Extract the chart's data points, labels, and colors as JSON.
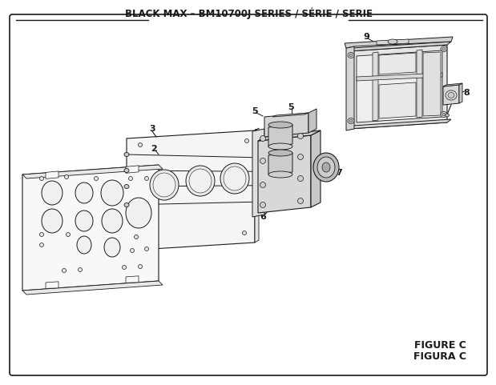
{
  "title": "BLACK MAX – BM10700J SERIES / SÉRIE / SERIE",
  "title_fontsize": 8.5,
  "title_fontweight": "bold",
  "bg_color": "#ffffff",
  "border_color": "#1a1a1a",
  "figure_label": "FIGURE C",
  "figure_label2": "FIGURA C",
  "figure_label_fontsize": 9,
  "figure_label_fontweight": "bold",
  "line_color": "#1a1a1a",
  "lw": 0.7
}
